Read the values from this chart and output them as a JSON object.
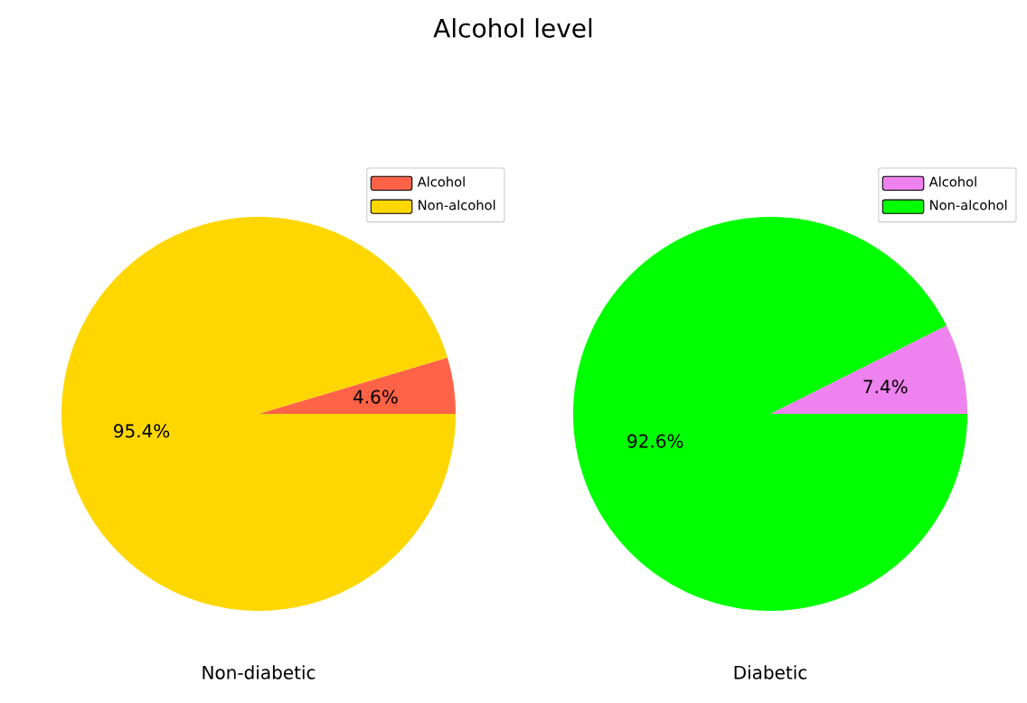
{
  "chart_data": [
    {
      "type": "pie",
      "title": "Alcohol level",
      "xlabel": "Non-diabetic",
      "categories": [
        "Alcohol",
        "Non-alcohol"
      ],
      "values": [
        4.6,
        95.4
      ],
      "value_labels": [
        "4.6%",
        "95.4%"
      ],
      "colors": [
        "#ff6347",
        "#ffd700"
      ],
      "legend": "top right"
    },
    {
      "type": "pie",
      "xlabel": "Diabetic",
      "categories": [
        "Alcohol",
        "Non-alcohol"
      ],
      "values": [
        7.4,
        92.6
      ],
      "value_labels": [
        "7.4%",
        "92.6%"
      ],
      "colors": [
        "#ee82ee",
        "#00ff00"
      ],
      "legend": "top right"
    }
  ]
}
